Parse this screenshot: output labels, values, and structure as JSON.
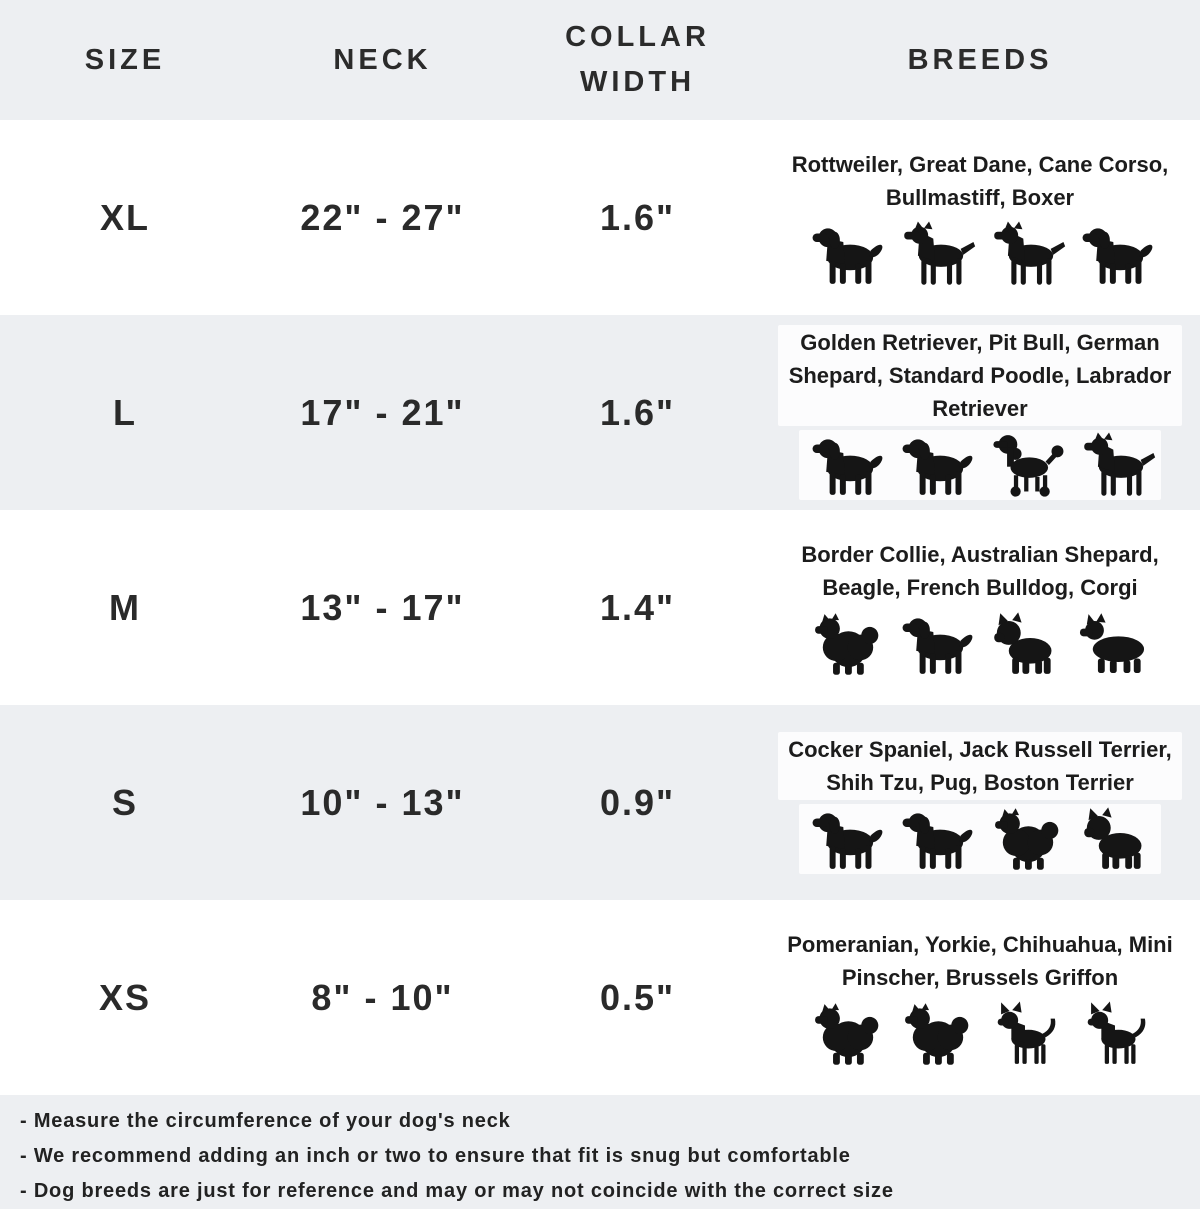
{
  "colors": {
    "band": "#edeff2",
    "row_alt": "#ffffff",
    "text": "#262626",
    "icon": "#151515"
  },
  "table": {
    "headers": [
      {
        "label": "SIZE"
      },
      {
        "label": "NECK"
      },
      {
        "label": "COLLAR WIDTH"
      },
      {
        "label": "BREEDS"
      }
    ],
    "rows": [
      {
        "size": "XL",
        "neck": "22\" - 27\"",
        "collar_width": "1.6\"",
        "breeds": "Rottweiler, Great Dane, Cane Corso, Bullmastiff, Boxer",
        "icons": [
          "rottweiler-icon",
          "great-dane-icon",
          "cane-corso-icon",
          "bullmastiff-icon"
        ]
      },
      {
        "size": "L",
        "neck": "17\" - 21\"",
        "collar_width": "1.6\"",
        "breeds": "Golden Retriever, Pit Bull, German Shepard, Standard Poodle, Labrador Retriever",
        "icons": [
          "golden-retriever-icon",
          "pit-bull-icon",
          "standard-poodle-icon",
          "german-shepard-icon"
        ]
      },
      {
        "size": "M",
        "neck": "13\" - 17\"",
        "collar_width": "1.4\"",
        "breeds": "Border Collie, Australian Shepard, Beagle, French Bulldog, Corgi",
        "icons": [
          "border-collie-icon",
          "beagle-icon",
          "french-bulldog-icon",
          "corgi-icon"
        ]
      },
      {
        "size": "S",
        "neck": "10\" - 13\"",
        "collar_width": "0.9\"",
        "breeds": "Cocker Spaniel, Jack Russell Terrier, Shih Tzu, Pug, Boston Terrier",
        "icons": [
          "cocker-spaniel-icon",
          "jack-russell-terrier-icon",
          "shih-tzu-icon",
          "pug-icon"
        ]
      },
      {
        "size": "XS",
        "neck": "8\" - 10\"",
        "collar_width": "0.5\"",
        "breeds": "Pomeranian, Yorkie, Chihuahua, Mini Pinscher, Brussels Griffon",
        "icons": [
          "pomeranian-icon",
          "yorkie-icon",
          "chihuahua-icon",
          "mini-pinscher-icon"
        ]
      }
    ]
  },
  "notes": [
    "- Measure the circumference of your dog's neck",
    "- We recommend adding an inch or two to ensure that fit is snug but comfortable",
    "- Dog breeds are just for reference and may or may not coincide with the correct size"
  ],
  "chart_data": {
    "type": "table",
    "title": "Dog collar size chart",
    "columns": [
      "SIZE",
      "NECK",
      "COLLAR WIDTH",
      "BREEDS"
    ],
    "rows": [
      [
        "XL",
        "22\" - 27\"",
        "1.6\"",
        "Rottweiler, Great Dane, Cane Corso, Bullmastiff, Boxer"
      ],
      [
        "L",
        "17\" - 21\"",
        "1.6\"",
        "Golden Retriever, Pit Bull, German Shepard, Standard Poodle, Labrador Retriever"
      ],
      [
        "M",
        "13\" - 17\"",
        "1.4\"",
        "Border Collie, Australian Shepard, Beagle, French Bulldog, Corgi"
      ],
      [
        "S",
        "10\" - 13\"",
        "0.9\"",
        "Cocker Spaniel, Jack Russell Terrier, Shih Tzu, Pug, Boston Terrier"
      ],
      [
        "XS",
        "8\" - 10\"",
        "0.5\"",
        "Pomeranian, Yorkie, Chihuahua, Mini Pinscher, Brussels Griffon"
      ]
    ]
  }
}
